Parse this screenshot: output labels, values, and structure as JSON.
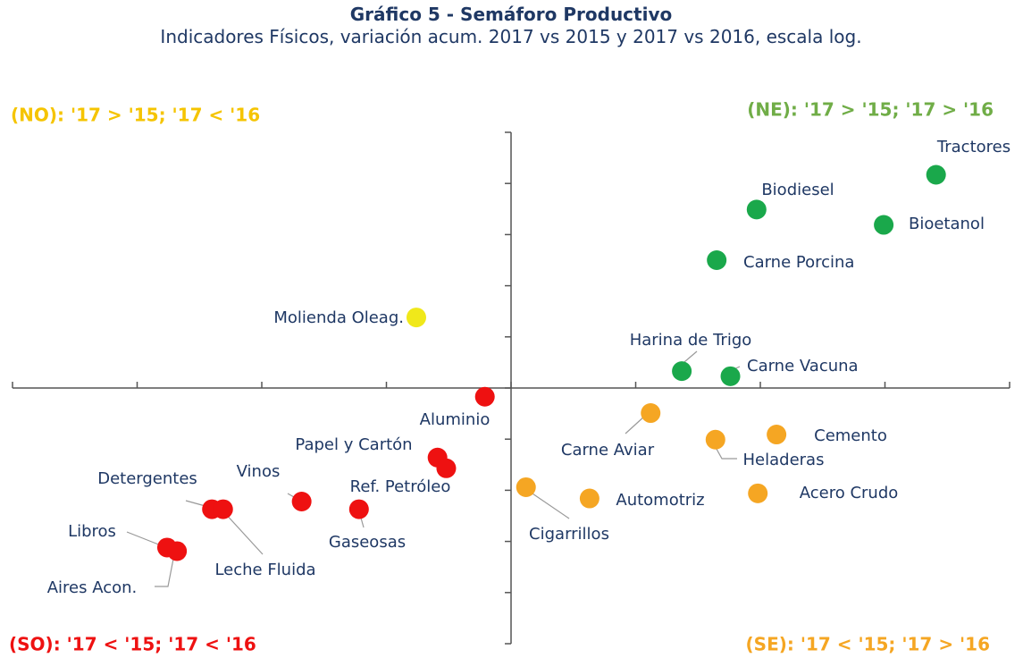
{
  "chart_data": {
    "type": "scatter",
    "title": "Gráfico 5 - Semáforo Productivo",
    "subtitle": "Indicadores Físicos, variación acum. 2017 vs 2015 y 2017 vs 2016, escala log.",
    "quadrants": [
      {
        "text": "(NO): '17 > '15; '17 < '16",
        "color": "#f5c400"
      },
      {
        "text": "(NE): '17 > '15; '17 > '16",
        "color": "#70ad47"
      },
      {
        "text": "(SO): '17 < '15; '17 < '16",
        "color": "#ee1111"
      },
      {
        "text": "(SE): '17 < '15; '17 > '16",
        "color": "#f5a623"
      }
    ],
    "xlim": [
      -4,
      4
    ],
    "ylim": [
      -5,
      5
    ],
    "xticks": [
      -4,
      -3,
      -2,
      -1,
      0,
      1,
      2,
      3,
      4
    ],
    "yticks": [
      -5,
      -4,
      -3,
      -2,
      -1,
      0,
      1,
      2,
      3,
      4,
      5
    ],
    "series": [
      {
        "color": "#1aa84b",
        "points": [
          {
            "label": "Tractores",
            "x": 3.41,
            "y": 4.17
          },
          {
            "label": "Biodiesel",
            "x": 1.97,
            "y": 3.49
          },
          {
            "label": "Bioetanol",
            "x": 2.99,
            "y": 3.19
          },
          {
            "label": "Carne Porcina",
            "x": 1.65,
            "y": 2.5
          },
          {
            "label": "Harina de Trigo",
            "x": 1.37,
            "y": 0.33
          },
          {
            "label": "Carne Vacuna",
            "x": 1.76,
            "y": 0.23
          }
        ]
      },
      {
        "color": "#f0e81a",
        "points": [
          {
            "label": "Molienda Oleag.",
            "x": -0.76,
            "y": 1.38
          }
        ]
      },
      {
        "color": "#ee1111",
        "points": [
          {
            "label": "Aluminio",
            "x": -0.21,
            "y": -0.17
          },
          {
            "label": "Papel y Cartón",
            "x": -0.59,
            "y": -1.36
          },
          {
            "label": "Ref. Petróleo",
            "x": -0.52,
            "y": -1.57
          },
          {
            "label": "Vinos",
            "x": -1.68,
            "y": -2.22
          },
          {
            "label": "Gaseosas",
            "x": -1.22,
            "y": -2.37
          },
          {
            "label": "Detergentes",
            "x": -2.4,
            "y": -2.37
          },
          {
            "label": "Leche Fluida",
            "x": -2.31,
            "y": -2.37
          },
          {
            "label": "Libros",
            "x": -2.76,
            "y": -3.12
          },
          {
            "label": "Aires Acon.",
            "x": -2.68,
            "y": -3.19
          }
        ]
      },
      {
        "color": "#f5a623",
        "points": [
          {
            "label": "Carne Aviar",
            "x": 1.12,
            "y": -0.49
          },
          {
            "label": "Cemento",
            "x": 2.13,
            "y": -0.91
          },
          {
            "label": "Heladeras",
            "x": 1.64,
            "y": -1.01
          },
          {
            "label": "Acero Crudo",
            "x": 1.98,
            "y": -2.06
          },
          {
            "label": "Automotriz",
            "x": 0.63,
            "y": -2.16
          },
          {
            "label": "Cigarrillos",
            "x": 0.12,
            "y": -1.94
          }
        ]
      }
    ]
  }
}
